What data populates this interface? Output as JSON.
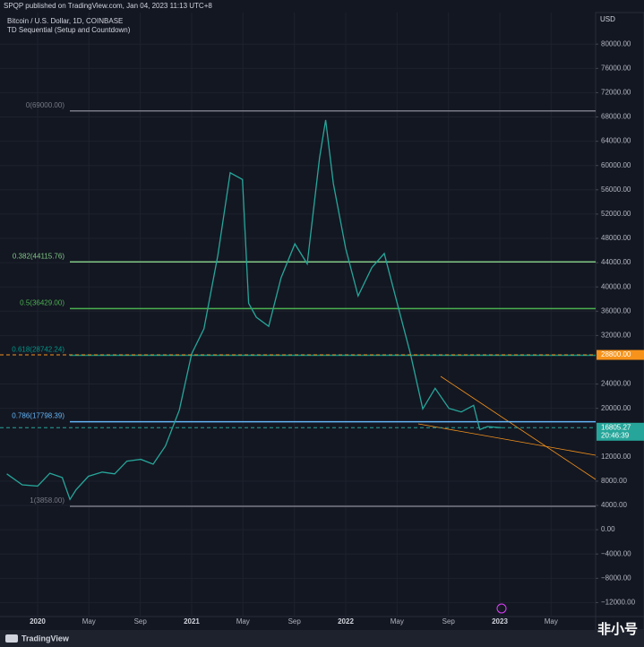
{
  "header": "SPQP published on TradingView.com, Jan 04, 2023 11:13 UTC+8",
  "footer": {
    "brand": "TradingView",
    "watermark": "非小号"
  },
  "chart_data": {
    "type": "line",
    "title": "Bitcoin / U.S. Dollar, 1D, COINBASE",
    "subtitle": "TD Sequential (Setup and Countdown)",
    "y_label": "USD",
    "x": [
      2019.8,
      2019.9,
      2020.0,
      2020.08,
      2020.16,
      2020.21,
      2020.25,
      2020.33,
      2020.42,
      2020.5,
      2020.58,
      2020.67,
      2020.75,
      2020.83,
      2020.92,
      2021.0,
      2021.08,
      2021.17,
      2021.25,
      2021.33,
      2021.37,
      2021.42,
      2021.5,
      2021.58,
      2021.67,
      2021.75,
      2021.83,
      2021.87,
      2021.92,
      2022.0,
      2022.08,
      2022.17,
      2022.25,
      2022.33,
      2022.42,
      2022.5,
      2022.58,
      2022.67,
      2022.75,
      2022.83,
      2022.87,
      2022.92,
      2023.01
    ],
    "values": [
      9200,
      7400,
      7200,
      9300,
      8600,
      5000,
      6600,
      8800,
      9500,
      9200,
      11300,
      11600,
      10800,
      13800,
      19700,
      29000,
      33100,
      45200,
      58800,
      57700,
      37300,
      35000,
      33500,
      41500,
      47100,
      43800,
      61300,
      67500,
      57000,
      46300,
      38500,
      43200,
      45500,
      37700,
      29000,
      19900,
      23300,
      20000,
      19400,
      20500,
      16500,
      17000,
      16805.27
    ],
    "color": "#26a69a",
    "xlim": [
      2019.756,
      2023.622
    ],
    "ylim": [
      -14300,
      85200
    ],
    "xticks": [
      2020,
      {
        "value": 2020.333,
        "label": "May"
      },
      {
        "value": 2020.667,
        "label": "Sep"
      },
      2021,
      {
        "value": 2021.333,
        "label": "May"
      },
      {
        "value": 2021.667,
        "label": "Sep"
      },
      2022,
      {
        "value": 2022.333,
        "label": "May"
      },
      {
        "value": 2022.667,
        "label": "Sep"
      },
      2023,
      {
        "value": 2023.333,
        "label": "May"
      }
    ],
    "yticks": [
      {
        "value": 80000,
        "label": "80000.00"
      },
      {
        "value": 76000,
        "label": "76000.00"
      },
      {
        "value": 72000,
        "label": "72000.00"
      },
      {
        "value": 68000,
        "label": "68000.00"
      },
      {
        "value": 64000,
        "label": "64000.00"
      },
      {
        "value": 60000,
        "label": "60000.00"
      },
      {
        "value": 56000,
        "label": "56000.00"
      },
      {
        "value": 52000,
        "label": "52000.00"
      },
      {
        "value": 48000,
        "label": "48000.00"
      },
      {
        "value": 44000,
        "label": "44000.00"
      },
      {
        "value": 40000,
        "label": "40000.00"
      },
      {
        "value": 36000,
        "label": "36000.00"
      },
      {
        "value": 32000,
        "label": "32000.00"
      },
      {
        "value": 24000,
        "label": "24000.00"
      },
      {
        "value": 20000,
        "label": "20000.00"
      },
      {
        "value": 12000,
        "label": "12000.00"
      },
      {
        "value": 8000,
        "label": "8000.00"
      },
      {
        "value": 4000,
        "label": "4000.00"
      },
      {
        "value": 0,
        "label": "0.00"
      },
      {
        "value": -4000,
        "label": "−4000.00"
      },
      {
        "value": -8000,
        "label": "−8000.00"
      },
      {
        "value": -12000,
        "label": "−12000.00"
      }
    ],
    "grid": true,
    "levels": [
      {
        "value": 69000,
        "label": "0(69000.00)",
        "color": "#787b86"
      },
      {
        "value": 44115.76,
        "label": "0.382(44115.76)",
        "color": "#81c784"
      },
      {
        "value": 36429,
        "label": "0.5(36429.00)",
        "color": "#4caf50"
      },
      {
        "value": 28742.24,
        "label": "0.618(28742.24)",
        "color": "#009688"
      },
      {
        "value": 17798.39,
        "label": "0.786(17798.39)",
        "color": "#64b5f6"
      },
      {
        "value": 3858,
        "label": "1(3858.00)",
        "color": "#787b86"
      }
    ],
    "price_tags": [
      {
        "value": 28800,
        "label": "28800.00",
        "color": "#f7931a"
      },
      {
        "value": 16805.27,
        "label": "16805.27",
        "color": "#26a69a",
        "timer": "20:46:39"
      }
    ]
  }
}
